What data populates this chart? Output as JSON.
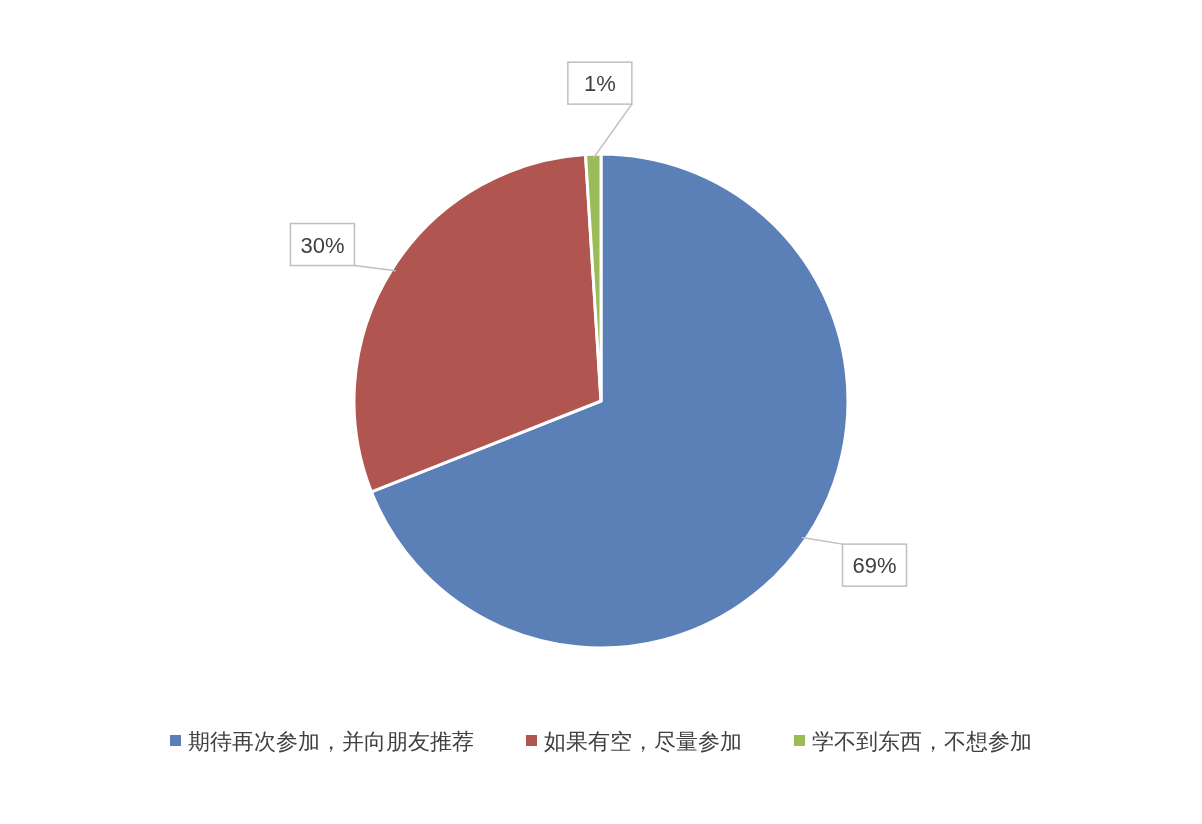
{
  "chart_data": {
    "type": "pie",
    "categories": [
      "期待再次参加，并向朋友推荐",
      "如果有空，尽量参加",
      "学不到东西，不想参加"
    ],
    "values": [
      69,
      30,
      1
    ],
    "colors": [
      "#5b80b8",
      "#b0554f",
      "#9bbb59"
    ],
    "value_labels": [
      "69%",
      "30%",
      "1%"
    ],
    "legend": "bottom"
  }
}
